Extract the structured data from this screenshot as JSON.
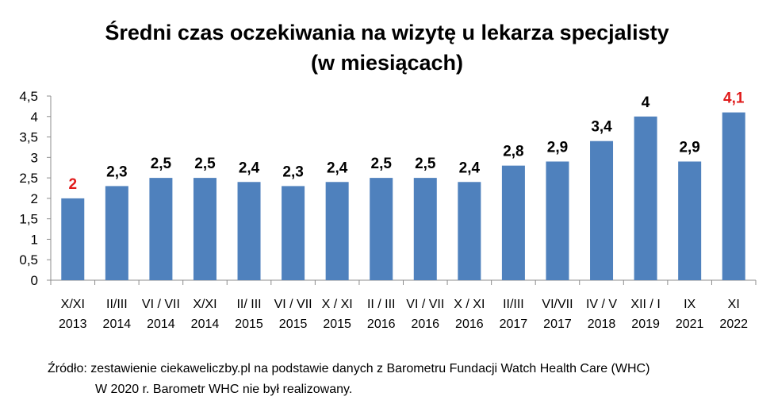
{
  "chart_data": {
    "type": "bar",
    "title_line1": "Średni czas oczekiwania na wizytę u lekarza specjalisty",
    "title_line2": "(w miesiącach)",
    "xlabel": "",
    "ylabel": "",
    "ylim": [
      0,
      4.5
    ],
    "yticks": [
      "0",
      "0,5",
      "1",
      "1,5",
      "2",
      "2,5",
      "3",
      "3,5",
      "4",
      "4,5"
    ],
    "grid": false,
    "legend": "none",
    "categories": [
      [
        "X/XI",
        "2013"
      ],
      [
        "II/III",
        "2014"
      ],
      [
        "VI / VII",
        "2014"
      ],
      [
        "X/XI",
        "2014"
      ],
      [
        "II/ III",
        "2015"
      ],
      [
        "VI / VII",
        "2015"
      ],
      [
        "X / XI",
        "2015"
      ],
      [
        "II / III",
        "2016"
      ],
      [
        "VI / VII",
        "2016"
      ],
      [
        "X / XI",
        "2016"
      ],
      [
        "II/III",
        "2017"
      ],
      [
        "VI/VII",
        "2017"
      ],
      [
        "IV / V",
        "2018"
      ],
      [
        "XII / I",
        "2019"
      ],
      [
        "IX",
        "2021"
      ],
      [
        "XI",
        "2022"
      ]
    ],
    "values": [
      2,
      2.3,
      2.5,
      2.5,
      2.4,
      2.3,
      2.4,
      2.5,
      2.5,
      2.4,
      2.8,
      2.9,
      3.4,
      4,
      2.9,
      4.1
    ],
    "data_labels": [
      "2",
      "2,3",
      "2,5",
      "2,5",
      "2,4",
      "2,3",
      "2,4",
      "2,5",
      "2,5",
      "2,4",
      "2,8",
      "2,9",
      "3,4",
      "4",
      "2,9",
      "4,1"
    ],
    "highlighted_indices": [
      0,
      15
    ]
  },
  "colors": {
    "bar": "#4f81bd",
    "highlight_label": "#e01b1b",
    "label": "#000000",
    "axis": "#8c8c8c"
  },
  "footnote": {
    "source": "Źródło: zestawienie ciekaweliczby.pl na podstawie danych z Barometru Fundacji Watch Health Care (WHC)",
    "note": "W 2020 r. Barometr WHC nie był realizowany."
  }
}
